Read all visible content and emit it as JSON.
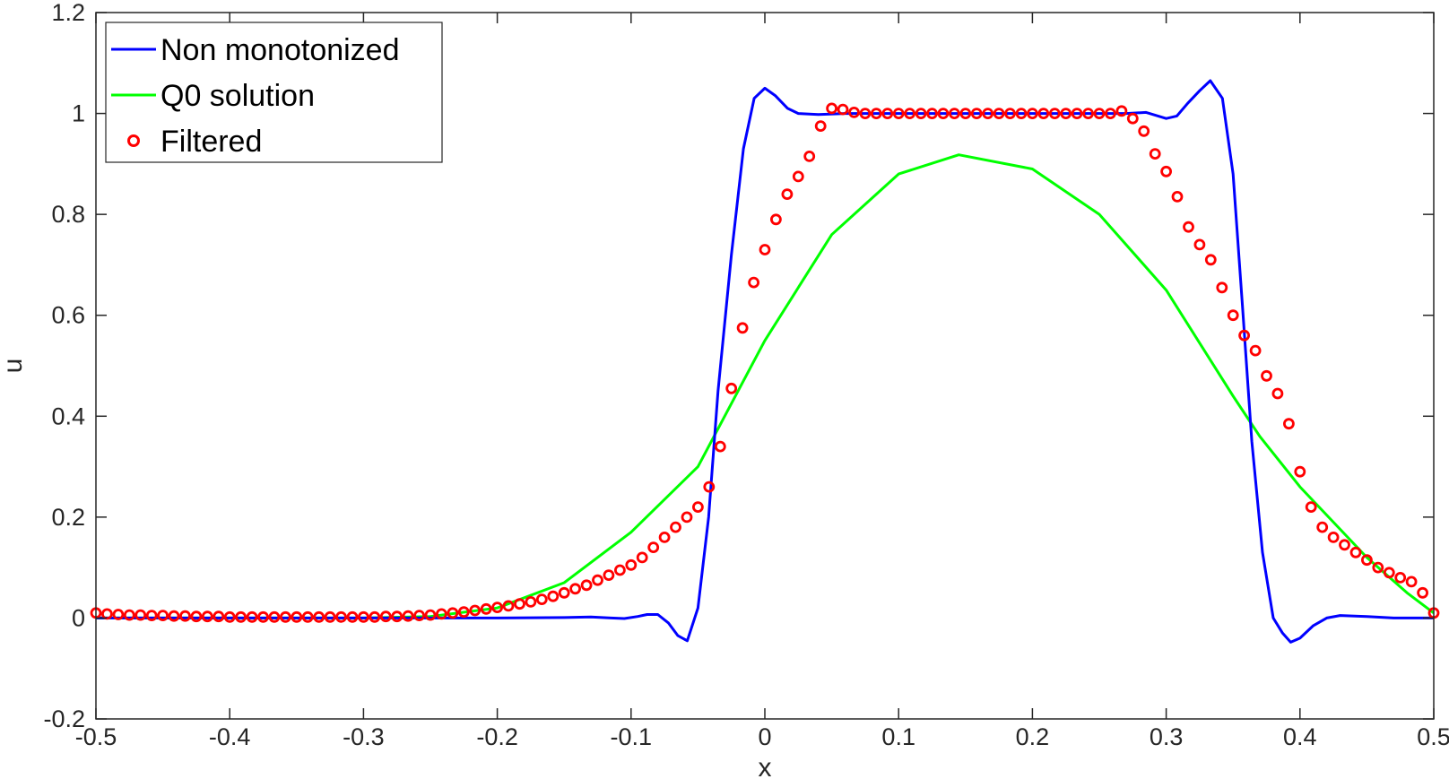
{
  "chart_data": {
    "type": "line",
    "title": "",
    "xlabel": "x",
    "ylabel": "u",
    "xlim": [
      -0.5,
      0.5
    ],
    "ylim": [
      -0.2,
      1.2
    ],
    "xticks": [
      -0.5,
      -0.4,
      -0.3,
      -0.2,
      -0.1,
      0,
      0.1,
      0.2,
      0.3,
      0.4,
      0.5
    ],
    "xtick_labels": [
      "-0.5",
      "-0.4",
      "-0.3",
      "-0.2",
      "-0.1",
      "0",
      "0.1",
      "0.2",
      "0.3",
      "0.4",
      "0.5"
    ],
    "yticks": [
      -0.2,
      0,
      0.2,
      0.4,
      0.6,
      0.8,
      1,
      1.2
    ],
    "ytick_labels": [
      "-0.2",
      "0",
      "0.2",
      "0.4",
      "0.6",
      "0.8",
      "1",
      "1.2"
    ],
    "grid": false,
    "legend_position": "top-left",
    "series": [
      {
        "name": "Non monotonized",
        "style": "line",
        "color": "#0000ff",
        "points": [
          [
            -0.5,
            0.0
          ],
          [
            -0.3,
            0.0
          ],
          [
            -0.2,
            0.0
          ],
          [
            -0.15,
            0.001
          ],
          [
            -0.13,
            0.002
          ],
          [
            -0.115,
            0.0
          ],
          [
            -0.105,
            -0.001
          ],
          [
            -0.095,
            0.003
          ],
          [
            -0.088,
            0.007
          ],
          [
            -0.08,
            0.007
          ],
          [
            -0.072,
            -0.01
          ],
          [
            -0.065,
            -0.035
          ],
          [
            -0.058,
            -0.045
          ],
          [
            -0.05,
            0.02
          ],
          [
            -0.042,
            0.2
          ],
          [
            -0.035,
            0.45
          ],
          [
            -0.025,
            0.72
          ],
          [
            -0.016,
            0.93
          ],
          [
            -0.008,
            1.03
          ],
          [
            0.0,
            1.05
          ],
          [
            0.008,
            1.035
          ],
          [
            0.017,
            1.01
          ],
          [
            0.025,
            1.0
          ],
          [
            0.04,
            0.998
          ],
          [
            0.06,
            1.0
          ],
          [
            0.1,
            1.0
          ],
          [
            0.2,
            1.0
          ],
          [
            0.27,
            1.0
          ],
          [
            0.285,
            1.002
          ],
          [
            0.3,
            0.99
          ],
          [
            0.308,
            0.995
          ],
          [
            0.316,
            1.02
          ],
          [
            0.325,
            1.045
          ],
          [
            0.333,
            1.065
          ],
          [
            0.342,
            1.03
          ],
          [
            0.35,
            0.88
          ],
          [
            0.357,
            0.62
          ],
          [
            0.364,
            0.35
          ],
          [
            0.372,
            0.13
          ],
          [
            0.38,
            0.0
          ],
          [
            0.387,
            -0.03
          ],
          [
            0.393,
            -0.048
          ],
          [
            0.4,
            -0.04
          ],
          [
            0.41,
            -0.015
          ],
          [
            0.42,
            0.0
          ],
          [
            0.43,
            0.005
          ],
          [
            0.45,
            0.003
          ],
          [
            0.47,
            0.0
          ],
          [
            0.5,
            0.0
          ]
        ]
      },
      {
        "name": "Q0 solution",
        "style": "line",
        "color": "#00ff00",
        "points": [
          [
            -0.5,
            0.0
          ],
          [
            -0.3,
            0.0
          ],
          [
            -0.25,
            0.003
          ],
          [
            -0.2,
            0.02
          ],
          [
            -0.15,
            0.07
          ],
          [
            -0.1,
            0.17
          ],
          [
            -0.05,
            0.3
          ],
          [
            -0.03,
            0.4
          ],
          [
            0.0,
            0.55
          ],
          [
            0.05,
            0.76
          ],
          [
            0.1,
            0.88
          ],
          [
            0.145,
            0.918
          ],
          [
            0.2,
            0.89
          ],
          [
            0.25,
            0.8
          ],
          [
            0.3,
            0.65
          ],
          [
            0.35,
            0.44
          ],
          [
            0.37,
            0.36
          ],
          [
            0.4,
            0.26
          ],
          [
            0.45,
            0.12
          ],
          [
            0.48,
            0.05
          ],
          [
            0.5,
            0.01
          ]
        ]
      },
      {
        "name": "Filtered",
        "style": "markers",
        "color": "#ff0000",
        "points": [
          [
            -0.5,
            0.01
          ],
          [
            -0.4917,
            0.008
          ],
          [
            -0.4833,
            0.007
          ],
          [
            -0.475,
            0.006
          ],
          [
            -0.4667,
            0.006
          ],
          [
            -0.4583,
            0.005
          ],
          [
            -0.45,
            0.005
          ],
          [
            -0.4417,
            0.004
          ],
          [
            -0.4333,
            0.004
          ],
          [
            -0.425,
            0.003
          ],
          [
            -0.4167,
            0.003
          ],
          [
            -0.4083,
            0.003
          ],
          [
            -0.4,
            0.002
          ],
          [
            -0.3917,
            0.002
          ],
          [
            -0.3833,
            0.002
          ],
          [
            -0.375,
            0.002
          ],
          [
            -0.3667,
            0.002
          ],
          [
            -0.3583,
            0.002
          ],
          [
            -0.35,
            0.002
          ],
          [
            -0.3417,
            0.002
          ],
          [
            -0.3333,
            0.002
          ],
          [
            -0.325,
            0.002
          ],
          [
            -0.3167,
            0.002
          ],
          [
            -0.3083,
            0.002
          ],
          [
            -0.3,
            0.002
          ],
          [
            -0.2917,
            0.002
          ],
          [
            -0.2833,
            0.003
          ],
          [
            -0.275,
            0.003
          ],
          [
            -0.2667,
            0.004
          ],
          [
            -0.2583,
            0.005
          ],
          [
            -0.25,
            0.006
          ],
          [
            -0.2417,
            0.008
          ],
          [
            -0.2333,
            0.01
          ],
          [
            -0.225,
            0.012
          ],
          [
            -0.2167,
            0.015
          ],
          [
            -0.2083,
            0.018
          ],
          [
            -0.2,
            0.021
          ],
          [
            -0.1917,
            0.024
          ],
          [
            -0.1833,
            0.028
          ],
          [
            -0.175,
            0.032
          ],
          [
            -0.1667,
            0.037
          ],
          [
            -0.1583,
            0.043
          ],
          [
            -0.15,
            0.05
          ],
          [
            -0.1417,
            0.058
          ],
          [
            -0.1333,
            0.065
          ],
          [
            -0.125,
            0.075
          ],
          [
            -0.1167,
            0.085
          ],
          [
            -0.1083,
            0.095
          ],
          [
            -0.1,
            0.105
          ],
          [
            -0.0917,
            0.12
          ],
          [
            -0.0833,
            0.14
          ],
          [
            -0.075,
            0.16
          ],
          [
            -0.0667,
            0.18
          ],
          [
            -0.0583,
            0.2
          ],
          [
            -0.05,
            0.22
          ],
          [
            -0.0417,
            0.26
          ],
          [
            -0.0333,
            0.34
          ],
          [
            -0.025,
            0.455
          ],
          [
            -0.0167,
            0.575
          ],
          [
            -0.0083,
            0.665
          ],
          [
            0.0,
            0.73
          ],
          [
            0.0083,
            0.79
          ],
          [
            0.0167,
            0.84
          ],
          [
            0.025,
            0.875
          ],
          [
            0.0333,
            0.915
          ],
          [
            0.0417,
            0.975
          ],
          [
            0.05,
            1.01
          ],
          [
            0.0583,
            1.008
          ],
          [
            0.0667,
            1.002
          ],
          [
            0.075,
            1.0
          ],
          [
            0.0833,
            1.0
          ],
          [
            0.0917,
            1.0
          ],
          [
            0.1,
            1.0
          ],
          [
            0.1083,
            1.0
          ],
          [
            0.1167,
            1.0
          ],
          [
            0.125,
            1.0
          ],
          [
            0.1333,
            1.0
          ],
          [
            0.1417,
            1.0
          ],
          [
            0.15,
            1.0
          ],
          [
            0.1583,
            1.0
          ],
          [
            0.1667,
            1.0
          ],
          [
            0.175,
            1.0
          ],
          [
            0.1833,
            1.0
          ],
          [
            0.1917,
            1.0
          ],
          [
            0.2,
            1.0
          ],
          [
            0.2083,
            1.0
          ],
          [
            0.2167,
            1.0
          ],
          [
            0.225,
            1.0
          ],
          [
            0.2333,
            1.0
          ],
          [
            0.2417,
            1.0
          ],
          [
            0.25,
            1.0
          ],
          [
            0.2583,
            1.0
          ],
          [
            0.2667,
            1.005
          ],
          [
            0.275,
            0.99
          ],
          [
            0.2833,
            0.965
          ],
          [
            0.2917,
            0.92
          ],
          [
            0.3,
            0.885
          ],
          [
            0.3083,
            0.835
          ],
          [
            0.3167,
            0.775
          ],
          [
            0.325,
            0.74
          ],
          [
            0.3333,
            0.71
          ],
          [
            0.3417,
            0.655
          ],
          [
            0.35,
            0.6
          ],
          [
            0.3583,
            0.56
          ],
          [
            0.3667,
            0.53
          ],
          [
            0.375,
            0.48
          ],
          [
            0.3833,
            0.445
          ],
          [
            0.3917,
            0.385
          ],
          [
            0.4,
            0.29
          ],
          [
            0.4083,
            0.22
          ],
          [
            0.4167,
            0.18
          ],
          [
            0.425,
            0.16
          ],
          [
            0.4333,
            0.145
          ],
          [
            0.4417,
            0.13
          ],
          [
            0.45,
            0.115
          ],
          [
            0.4583,
            0.1
          ],
          [
            0.4667,
            0.09
          ],
          [
            0.475,
            0.08
          ],
          [
            0.4833,
            0.072
          ],
          [
            0.4917,
            0.05
          ],
          [
            0.5,
            0.01
          ]
        ]
      }
    ]
  }
}
